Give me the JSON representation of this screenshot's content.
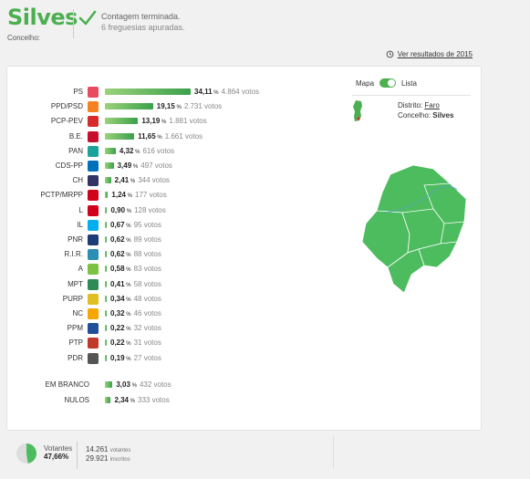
{
  "header": {
    "title": "Silves",
    "subtitle": "Concelho:",
    "status_main": "Contagem terminada.",
    "status_sub": "6 freguesias apuradas."
  },
  "results_link": {
    "icon": "history-icon",
    "label": "Ver resultados de 2015"
  },
  "map": {
    "toggle_left": "Mapa",
    "toggle_right": "Lista",
    "district_label": "Distrito:",
    "district_value": "Faro",
    "council_label": "Concelho:",
    "council_value": "Silves",
    "color": "#4cbc5e"
  },
  "parties": [
    {
      "name": "PS",
      "pct": "34,11",
      "votes": "4.864 votos",
      "share": 34.11,
      "color": "#e84a5f"
    },
    {
      "name": "PPD/PSD",
      "pct": "19,15",
      "votes": "2.731 votos",
      "share": 19.15,
      "color": "#f58220"
    },
    {
      "name": "PCP-PEV",
      "pct": "13,19",
      "votes": "1.881 votos",
      "share": 13.19,
      "color": "#d62b2b"
    },
    {
      "name": "B.E.",
      "pct": "11,65",
      "votes": "1.661 votos",
      "share": 11.65,
      "color": "#c8102e"
    },
    {
      "name": "PAN",
      "pct": "4,32",
      "votes": "616 votos",
      "share": 4.32,
      "color": "#1aa39a"
    },
    {
      "name": "CDS-PP",
      "pct": "3,49",
      "votes": "497 votos",
      "share": 3.49,
      "color": "#0072bc"
    },
    {
      "name": "CH",
      "pct": "2,41",
      "votes": "344 votos",
      "share": 2.41,
      "color": "#333366"
    },
    {
      "name": "PCTP/MRPP",
      "pct": "1,24",
      "votes": "177 votos",
      "share": 1.24,
      "color": "#d0021b"
    },
    {
      "name": "L",
      "pct": "0,90",
      "votes": "128 votos",
      "share": 0.9,
      "color": "#d0021b"
    },
    {
      "name": "IL",
      "pct": "0,67",
      "votes": "95 votos",
      "share": 0.67,
      "color": "#00aeef"
    },
    {
      "name": "PNR",
      "pct": "0,62",
      "votes": "89 votos",
      "share": 0.62,
      "color": "#1d3c78"
    },
    {
      "name": "R.I.R.",
      "pct": "0,62",
      "votes": "88 votos",
      "share": 0.62,
      "color": "#2b8fb5"
    },
    {
      "name": "A",
      "pct": "0,58",
      "votes": "83 votos",
      "share": 0.58,
      "color": "#7cc242"
    },
    {
      "name": "MPT",
      "pct": "0,41",
      "votes": "58 votos",
      "share": 0.41,
      "color": "#2e8b57"
    },
    {
      "name": "PURP",
      "pct": "0,34",
      "votes": "48 votos",
      "share": 0.34,
      "color": "#e0c020"
    },
    {
      "name": "NC",
      "pct": "0,32",
      "votes": "46 votos",
      "share": 0.32,
      "color": "#f7a600"
    },
    {
      "name": "PPM",
      "pct": "0,22",
      "votes": "32 votos",
      "share": 0.22,
      "color": "#1f4e9a"
    },
    {
      "name": "PTP",
      "pct": "0,22",
      "votes": "31 votos",
      "share": 0.22,
      "color": "#c0392b"
    },
    {
      "name": "PDR",
      "pct": "0,19",
      "votes": "27 votos",
      "share": 0.19,
      "color": "#555555"
    }
  ],
  "others": [
    {
      "name": "EM BRANCO",
      "pct": "3,03",
      "votes": "432 votos",
      "share": 3.03
    },
    {
      "name": "NULOS",
      "pct": "2,34",
      "votes": "333 votos",
      "share": 2.34
    }
  ],
  "footer": {
    "voters_label": "Votantes",
    "voters_pct": "47,66",
    "voters_share": 47.66,
    "voters_count": "14.261",
    "voters_unit": "votantes",
    "registered_count": "29.921",
    "registered_unit": "inscritos"
  }
}
